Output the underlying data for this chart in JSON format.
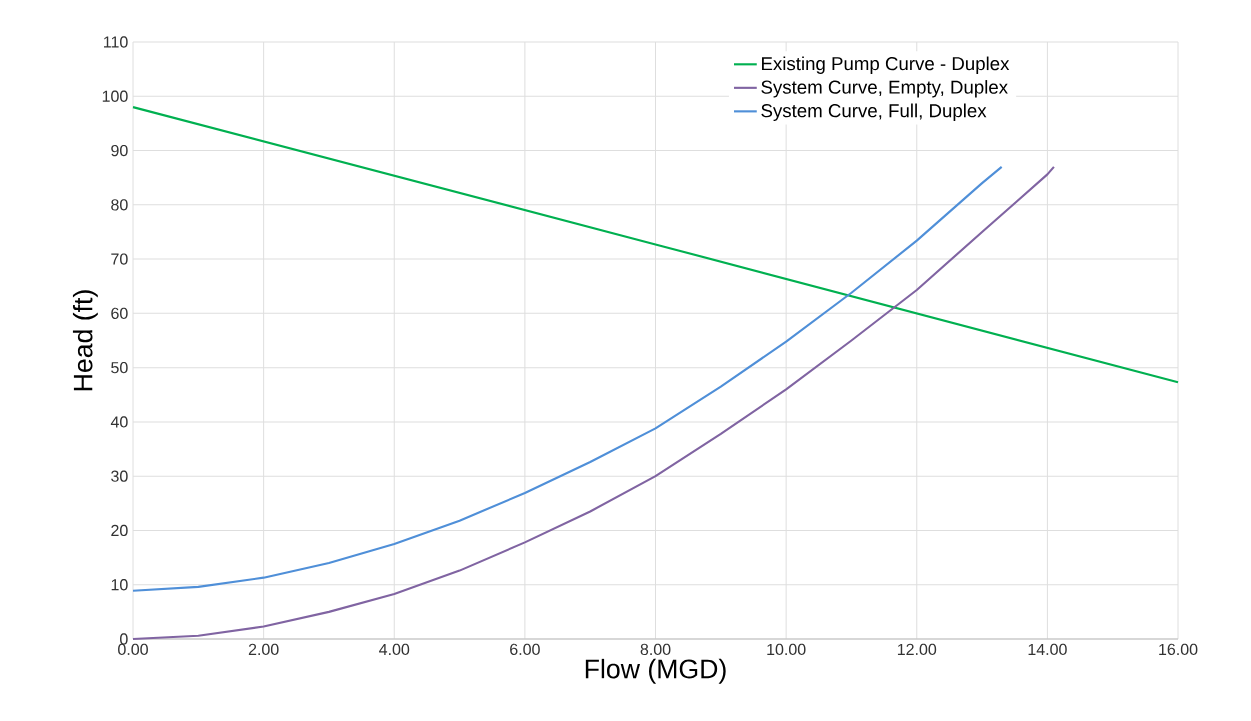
{
  "chart_data": {
    "type": "line",
    "xlabel": "Flow (MGD)",
    "ylabel": "Head (ft)",
    "xlim": [
      0,
      16
    ],
    "ylim": [
      0,
      110
    ],
    "xticks": [
      {
        "value": 0,
        "label": "0.00"
      },
      {
        "value": 2,
        "label": "2.00"
      },
      {
        "value": 4,
        "label": "4.00"
      },
      {
        "value": 6,
        "label": "6.00"
      },
      {
        "value": 8,
        "label": "8.00"
      },
      {
        "value": 10,
        "label": "10.00"
      },
      {
        "value": 12,
        "label": "12.00"
      },
      {
        "value": 14,
        "label": "14.00"
      },
      {
        "value": 16,
        "label": "16.00"
      }
    ],
    "yticks": [
      0,
      10,
      20,
      30,
      40,
      50,
      60,
      70,
      80,
      90,
      100,
      110
    ],
    "grid": true,
    "legend": "top right",
    "series": [
      {
        "name": "Existing Pump Curve - Duplex",
        "color": "#00b050",
        "x": [
          0,
          8,
          16
        ],
        "values": [
          98,
          72.7,
          47.3
        ]
      },
      {
        "name": "System Curve, Empty,  Duplex",
        "color": "#8064a2",
        "x": [
          0,
          1,
          2,
          3,
          4,
          5,
          6,
          7,
          8,
          9,
          10,
          11,
          12,
          13,
          14,
          14.1
        ],
        "values": [
          0,
          0.6,
          2.3,
          5,
          8.3,
          12.6,
          17.8,
          23.5,
          30,
          37.8,
          46,
          55,
          64.3,
          75,
          85.6,
          87
        ]
      },
      {
        "name": "System Curve, Full, Duplex",
        "color": "#4f8fd8",
        "x": [
          0,
          1,
          2,
          3,
          4,
          5,
          6,
          7,
          8,
          9,
          10,
          11,
          12,
          13,
          13.3
        ],
        "values": [
          8.9,
          9.6,
          11.3,
          14,
          17.5,
          21.8,
          26.9,
          32.6,
          38.8,
          46.5,
          54.8,
          63.8,
          73.4,
          84,
          87
        ]
      }
    ]
  }
}
